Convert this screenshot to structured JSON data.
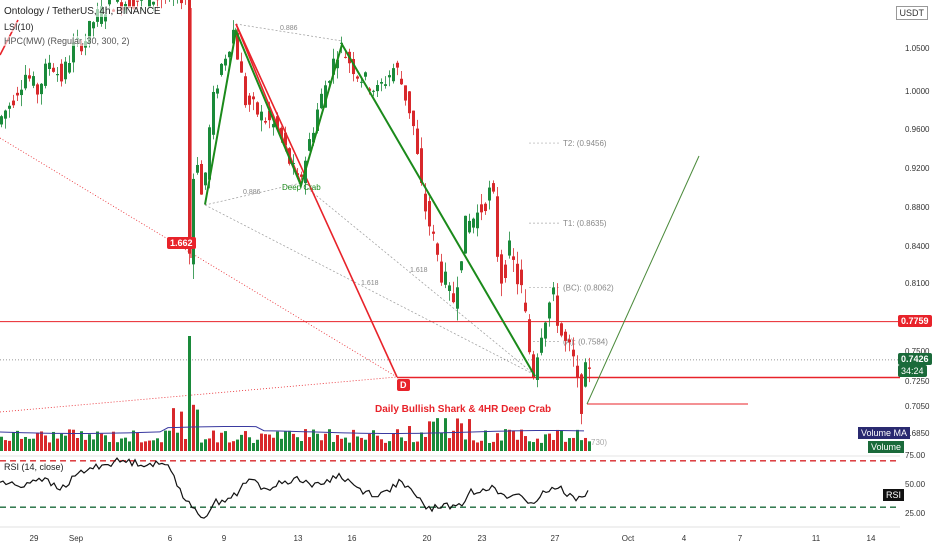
{
  "header": {
    "title": "Ontology / TetherUS, 4h, BINANCE",
    "sub1": "LSI(10)",
    "sub2": "HPC(MW) (Regular, 30, 300, 2)"
  },
  "currency": "USDT",
  "colors": {
    "up": "#1a8a3a",
    "down": "#d8282b",
    "pattern": "#1b8a1b",
    "red_line": "#e8232a",
    "projection": "#4a8a3a",
    "ma": "#3a3aa0",
    "rsi": "#111111"
  },
  "badges": {
    "current_price": "0.7426",
    "countdown": "34:24",
    "level_1": "0.7759",
    "d_point": "D",
    "left_value": "1.662"
  },
  "labels": {
    "pattern_title": "Daily Bullish Shark & 4HR Deep Crab",
    "deep_crab": "Deep Crab",
    "r_top": "0.886",
    "r_left": "0.886",
    "r_mid1": "1.618",
    "r_mid2": "1.618",
    "t2": "T2: (0.9456)",
    "t1": "T1: (0.8635)",
    "bc": "(BC): (0.8062)",
    "a": "(A): (0.7584)",
    "vol_value": "730)",
    "volume_ma": "Volume MA",
    "volume": "Volume",
    "rsi_title": "RSI (14, close)",
    "rsi_tag": "RSI"
  },
  "chart_data": {
    "type": "candlestick",
    "y_axis": {
      "ticks": [
        "1.0500",
        "1.0000",
        "0.9600",
        "0.9200",
        "0.8800",
        "0.8400",
        "0.8100",
        "0.7500",
        "0.7250",
        "0.7050",
        "0.6850"
      ],
      "partial_top_tick": "1.0",
      "ylim": [
        0.68,
        1.1
      ]
    },
    "x_axis": {
      "ticks": [
        "29",
        "Sep",
        "6",
        "9",
        "13",
        "16",
        "20",
        "23",
        "27",
        "Oct",
        "4",
        "7",
        "11",
        "14"
      ]
    },
    "levels": {
      "horizontal_red": 0.7759,
      "d_level": 0.7279,
      "current": 0.7426
    },
    "targets": [
      {
        "name": "T2",
        "value": 0.9456
      },
      {
        "name": "T1",
        "value": 0.8635
      },
      {
        "name": "BC",
        "value": 0.8062
      },
      {
        "name": "A",
        "value": 0.7584
      }
    ],
    "harmonic_points": [
      {
        "x": 205,
        "y": 0.8825
      },
      {
        "x": 236,
        "y": 1.069
      },
      {
        "x": 301,
        "y": 0.902
      },
      {
        "x": 342,
        "y": 1.054
      },
      {
        "x": 535,
        "y": 0.729
      }
    ],
    "rsi": {
      "ticks": [
        "75.00",
        "50.00",
        "25.00"
      ],
      "overbought": 70,
      "oversold": 30,
      "ylim": [
        20,
        80
      ]
    }
  }
}
